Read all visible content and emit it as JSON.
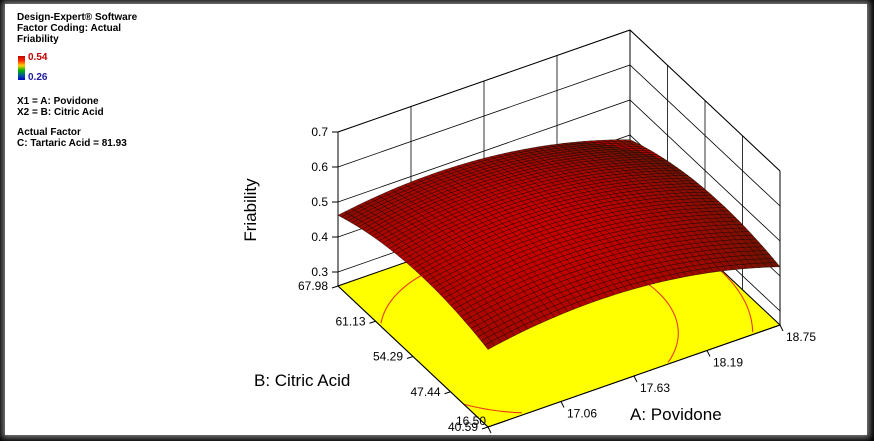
{
  "header": {
    "software": "Design-Expert® Software",
    "coding": "Factor Coding: Actual",
    "response": "Friability"
  },
  "legend": {
    "max": "0.54",
    "min": "0.26"
  },
  "factors": {
    "x1": "X1 = A: Povidone",
    "x2": "X2 = B: Citric Acid"
  },
  "actual_factor": {
    "title": "Actual Factor",
    "value": "C: Tartaric Acid = 81.93"
  },
  "chart_data": {
    "type": "surface",
    "xlabel": "A: Povidone",
    "ylabel": "B: Citric Acid",
    "zlabel": "Friability",
    "x_ticks": [
      "16.50",
      "17.06",
      "17.63",
      "18.19",
      "18.75"
    ],
    "y_ticks": [
      "40.59",
      "47.44",
      "54.29",
      "61.13",
      "67.98"
    ],
    "z_ticks": [
      "0.3",
      "0.4",
      "0.5",
      "0.6",
      "0.7"
    ],
    "xlim": [
      16.5,
      18.75
    ],
    "ylim": [
      40.59,
      67.98
    ],
    "zlim": [
      0.26,
      0.7
    ],
    "response_range": [
      0.26,
      0.54
    ],
    "surface_peak": {
      "x": 17.3,
      "y": 52,
      "z": 0.54
    },
    "contour_levels": [
      0.3,
      0.35,
      0.4,
      0.45,
      0.5
    ],
    "colors": {
      "high": "#c00000",
      "mid": "#ffd000",
      "low": "#00a000",
      "floor": "#ffff00"
    }
  }
}
